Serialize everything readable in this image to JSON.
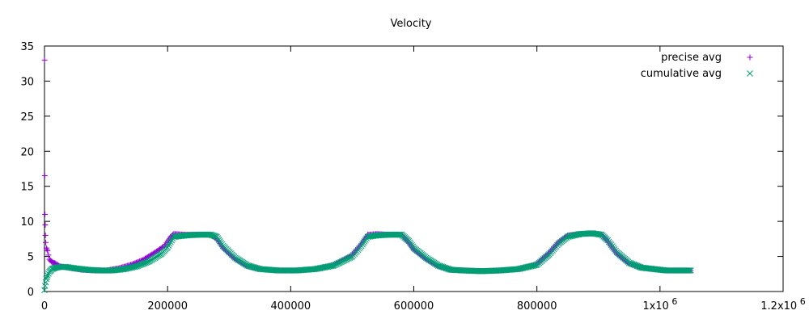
{
  "chart_data": {
    "type": "scatter",
    "title": "Velocity",
    "xlabel": "",
    "ylabel": "",
    "xlim": [
      0,
      1200000
    ],
    "ylim": [
      0,
      35
    ],
    "x_ticks": [
      {
        "value": 0,
        "label": "0"
      },
      {
        "value": 200000,
        "label": "200000"
      },
      {
        "value": 400000,
        "label": "400000"
      },
      {
        "value": 600000,
        "label": "600000"
      },
      {
        "value": 800000,
        "label": "800000"
      },
      {
        "value": 1000000,
        "label": "1x10"
      },
      {
        "value": 1200000,
        "label": "1.2x10"
      }
    ],
    "x_tick_exponent": "6",
    "y_ticks": [
      0,
      5,
      10,
      15,
      20,
      25,
      30,
      35
    ],
    "grid": false,
    "legend": "top-right",
    "series": [
      {
        "name": "precise avg",
        "color": "#9400d3",
        "marker": "plus",
        "x": [
          200,
          500,
          800,
          1200,
          1500,
          2000,
          3000,
          5000,
          8000,
          12000,
          18000,
          25000,
          40000,
          60000,
          80000,
          100000,
          120000,
          140000,
          160000,
          180000,
          195000,
          205000,
          210000,
          230000,
          250000,
          270000,
          280000,
          290000,
          310000,
          330000,
          350000,
          380000,
          410000,
          440000,
          470000,
          500000,
          515000,
          525000,
          540000,
          560000,
          580000,
          592000,
          600000,
          620000,
          640000,
          660000,
          680000,
          710000,
          740000,
          770000,
          800000,
          820000,
          835000,
          850000,
          870000,
          890000,
          905000,
          915000,
          930000,
          950000,
          970000,
          990000,
          1010000,
          1030000,
          1050000
        ],
        "y": [
          33,
          16.5,
          11,
          9.5,
          8,
          7,
          6.2,
          5.8,
          4.6,
          4.2,
          4.0,
          3.6,
          3.4,
          3.1,
          3.0,
          3.0,
          3.3,
          3.8,
          4.5,
          5.6,
          6.5,
          7.8,
          8.2,
          8.1,
          8.1,
          8.1,
          7.5,
          6.2,
          4.6,
          3.6,
          3.2,
          3.0,
          3.0,
          3.2,
          3.8,
          5.2,
          6.8,
          8.1,
          8.2,
          8.1,
          8.1,
          7.0,
          6.0,
          4.6,
          3.6,
          3.1,
          3.0,
          2.9,
          3.0,
          3.2,
          3.9,
          5.5,
          7.0,
          8.0,
          8.2,
          8.3,
          8.1,
          7.2,
          5.4,
          4.0,
          3.4,
          3.2,
          3.0,
          3.0,
          3.0
        ]
      },
      {
        "name": "cumulative avg",
        "color": "#009e73",
        "marker": "cross",
        "x": [
          0,
          1000,
          2000,
          3000,
          5000,
          8000,
          12000,
          18000,
          25000,
          35000,
          50000,
          70000,
          90000,
          110000,
          130000,
          150000,
          170000,
          190000,
          200000,
          210000,
          230000,
          250000,
          270000,
          280000,
          290000,
          310000,
          330000,
          350000,
          380000,
          410000,
          440000,
          470000,
          500000,
          515000,
          525000,
          540000,
          560000,
          580000,
          592000,
          600000,
          620000,
          640000,
          660000,
          680000,
          710000,
          740000,
          770000,
          800000,
          820000,
          835000,
          850000,
          870000,
          890000,
          905000,
          915000,
          930000,
          950000,
          970000,
          990000,
          1010000,
          1030000,
          1050000
        ],
        "y": [
          0.2,
          0.8,
          1.3,
          1.8,
          2.3,
          2.8,
          3.2,
          3.4,
          3.5,
          3.5,
          3.3,
          3.1,
          3.0,
          3.0,
          3.2,
          3.6,
          4.3,
          5.4,
          6.3,
          7.8,
          8.0,
          8.1,
          8.1,
          7.8,
          6.5,
          4.8,
          3.7,
          3.2,
          3.0,
          3.0,
          3.2,
          3.7,
          5.0,
          6.5,
          7.8,
          8.0,
          8.1,
          8.1,
          7.2,
          6.2,
          4.8,
          3.7,
          3.1,
          3.0,
          2.9,
          3.0,
          3.2,
          3.8,
          5.3,
          6.8,
          7.8,
          8.2,
          8.3,
          8.1,
          7.3,
          5.6,
          4.1,
          3.4,
          3.2,
          3.0,
          3.0,
          3.0
        ]
      }
    ]
  }
}
